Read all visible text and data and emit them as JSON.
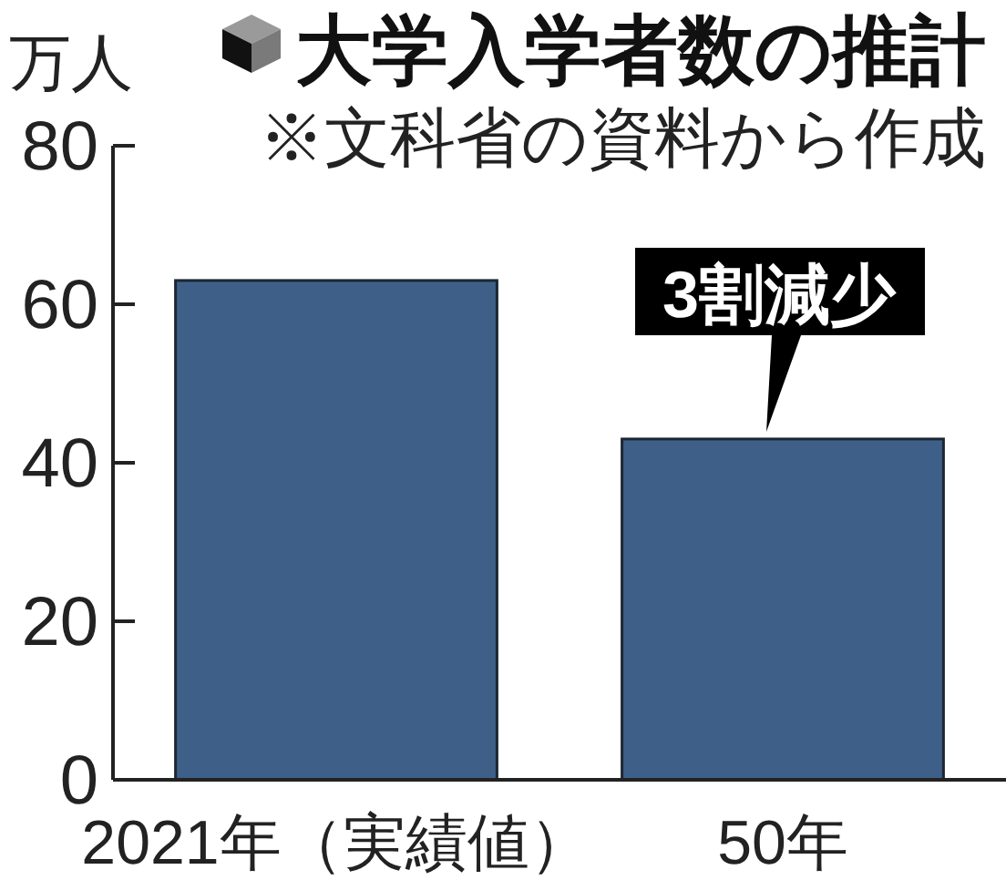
{
  "chart_data": {
    "type": "bar",
    "title": "大学入学者数の推計",
    "subtitle": "※文科省の資料から作成",
    "ylabel": "万人",
    "categories": [
      "2021年（実績値）",
      "50年"
    ],
    "values": [
      63,
      43
    ],
    "color": "#3e6088",
    "ylim": [
      0,
      80
    ],
    "yticks": [
      0,
      20,
      40,
      60,
      80
    ],
    "annotations": [
      {
        "text": "3割減少",
        "x": "50年",
        "y": 43
      }
    ]
  }
}
